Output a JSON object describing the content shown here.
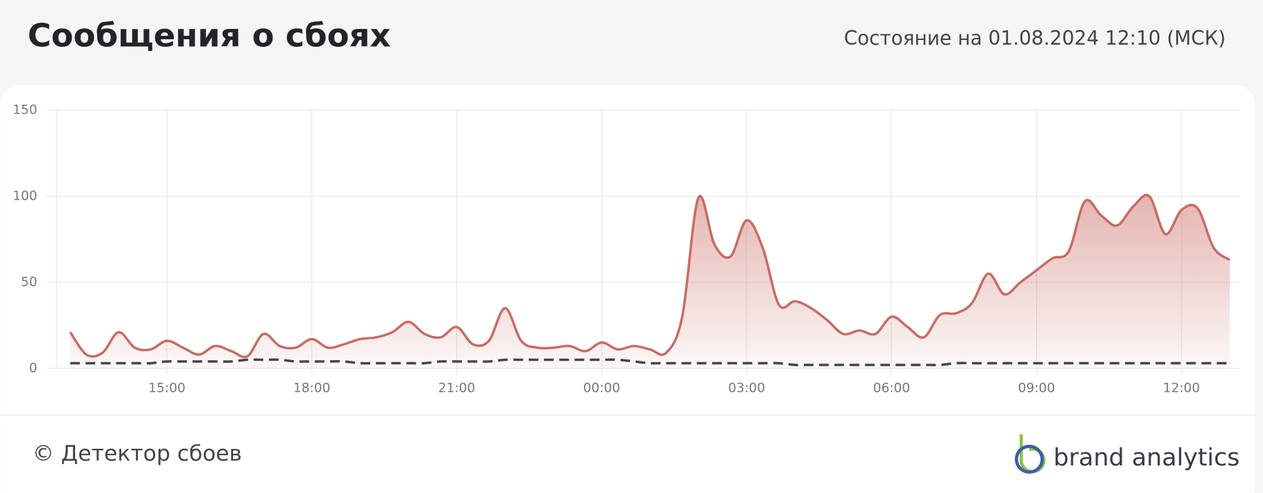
{
  "header": {
    "title": "Сообщения о сбоях",
    "status": "Состояние на 01.08.2024 12:10 (МСК)"
  },
  "chart_data": {
    "type": "line",
    "categories": [
      null,
      null,
      null,
      null,
      null,
      null,
      "15:00",
      null,
      null,
      null,
      null,
      null,
      null,
      null,
      null,
      "18:00",
      null,
      null,
      null,
      null,
      null,
      null,
      null,
      null,
      "21:00",
      null,
      null,
      null,
      null,
      null,
      null,
      null,
      null,
      "00:00",
      null,
      null,
      null,
      null,
      null,
      null,
      null,
      null,
      "03:00",
      null,
      null,
      null,
      null,
      null,
      null,
      null,
      null,
      "06:00",
      null,
      null,
      null,
      null,
      null,
      null,
      null,
      null,
      "09:00",
      null,
      null,
      null,
      null,
      null,
      null,
      null,
      null,
      "12:00",
      null,
      null,
      null
    ],
    "series": [
      {
        "color": "#c96a62",
        "area": true,
        "values": [
          21,
          8,
          9,
          21,
          12,
          11,
          16,
          12,
          8,
          13,
          10,
          7,
          20,
          13,
          12,
          17,
          12,
          14,
          17,
          18,
          21,
          27,
          20,
          18,
          24,
          14,
          16,
          35,
          16,
          12,
          12,
          13,
          10,
          15,
          11,
          13,
          11,
          9,
          30,
          99,
          72,
          65,
          86,
          70,
          37,
          39,
          35,
          28,
          20,
          22,
          20,
          30,
          24,
          18,
          31,
          32,
          38,
          55,
          43,
          50,
          57,
          64,
          68,
          97,
          89,
          83,
          94,
          100,
          78,
          92,
          93,
          70,
          63
        ]
      },
      {
        "color": "#45434a",
        "dashed": true,
        "values": [
          3,
          3,
          3,
          3,
          3,
          3,
          4,
          4,
          4,
          4,
          4,
          5,
          5,
          5,
          4,
          4,
          4,
          4,
          3,
          3,
          3,
          3,
          3,
          4,
          4,
          4,
          4,
          5,
          5,
          5,
          5,
          5,
          5,
          5,
          5,
          4,
          3,
          3,
          3,
          3,
          3,
          3,
          3,
          3,
          3,
          2,
          2,
          2,
          2,
          2,
          2,
          2,
          2,
          2,
          2,
          3,
          3,
          3,
          3,
          3,
          3,
          3,
          3,
          3,
          3,
          3,
          3,
          3,
          3,
          3,
          3,
          3,
          3
        ]
      }
    ],
    "ylim": [
      0,
      150
    ],
    "yticks": [
      0,
      50,
      100,
      150
    ],
    "grid": true
  },
  "footer": {
    "copyright": "© Детектор сбоев",
    "logo": "brand analytics"
  }
}
